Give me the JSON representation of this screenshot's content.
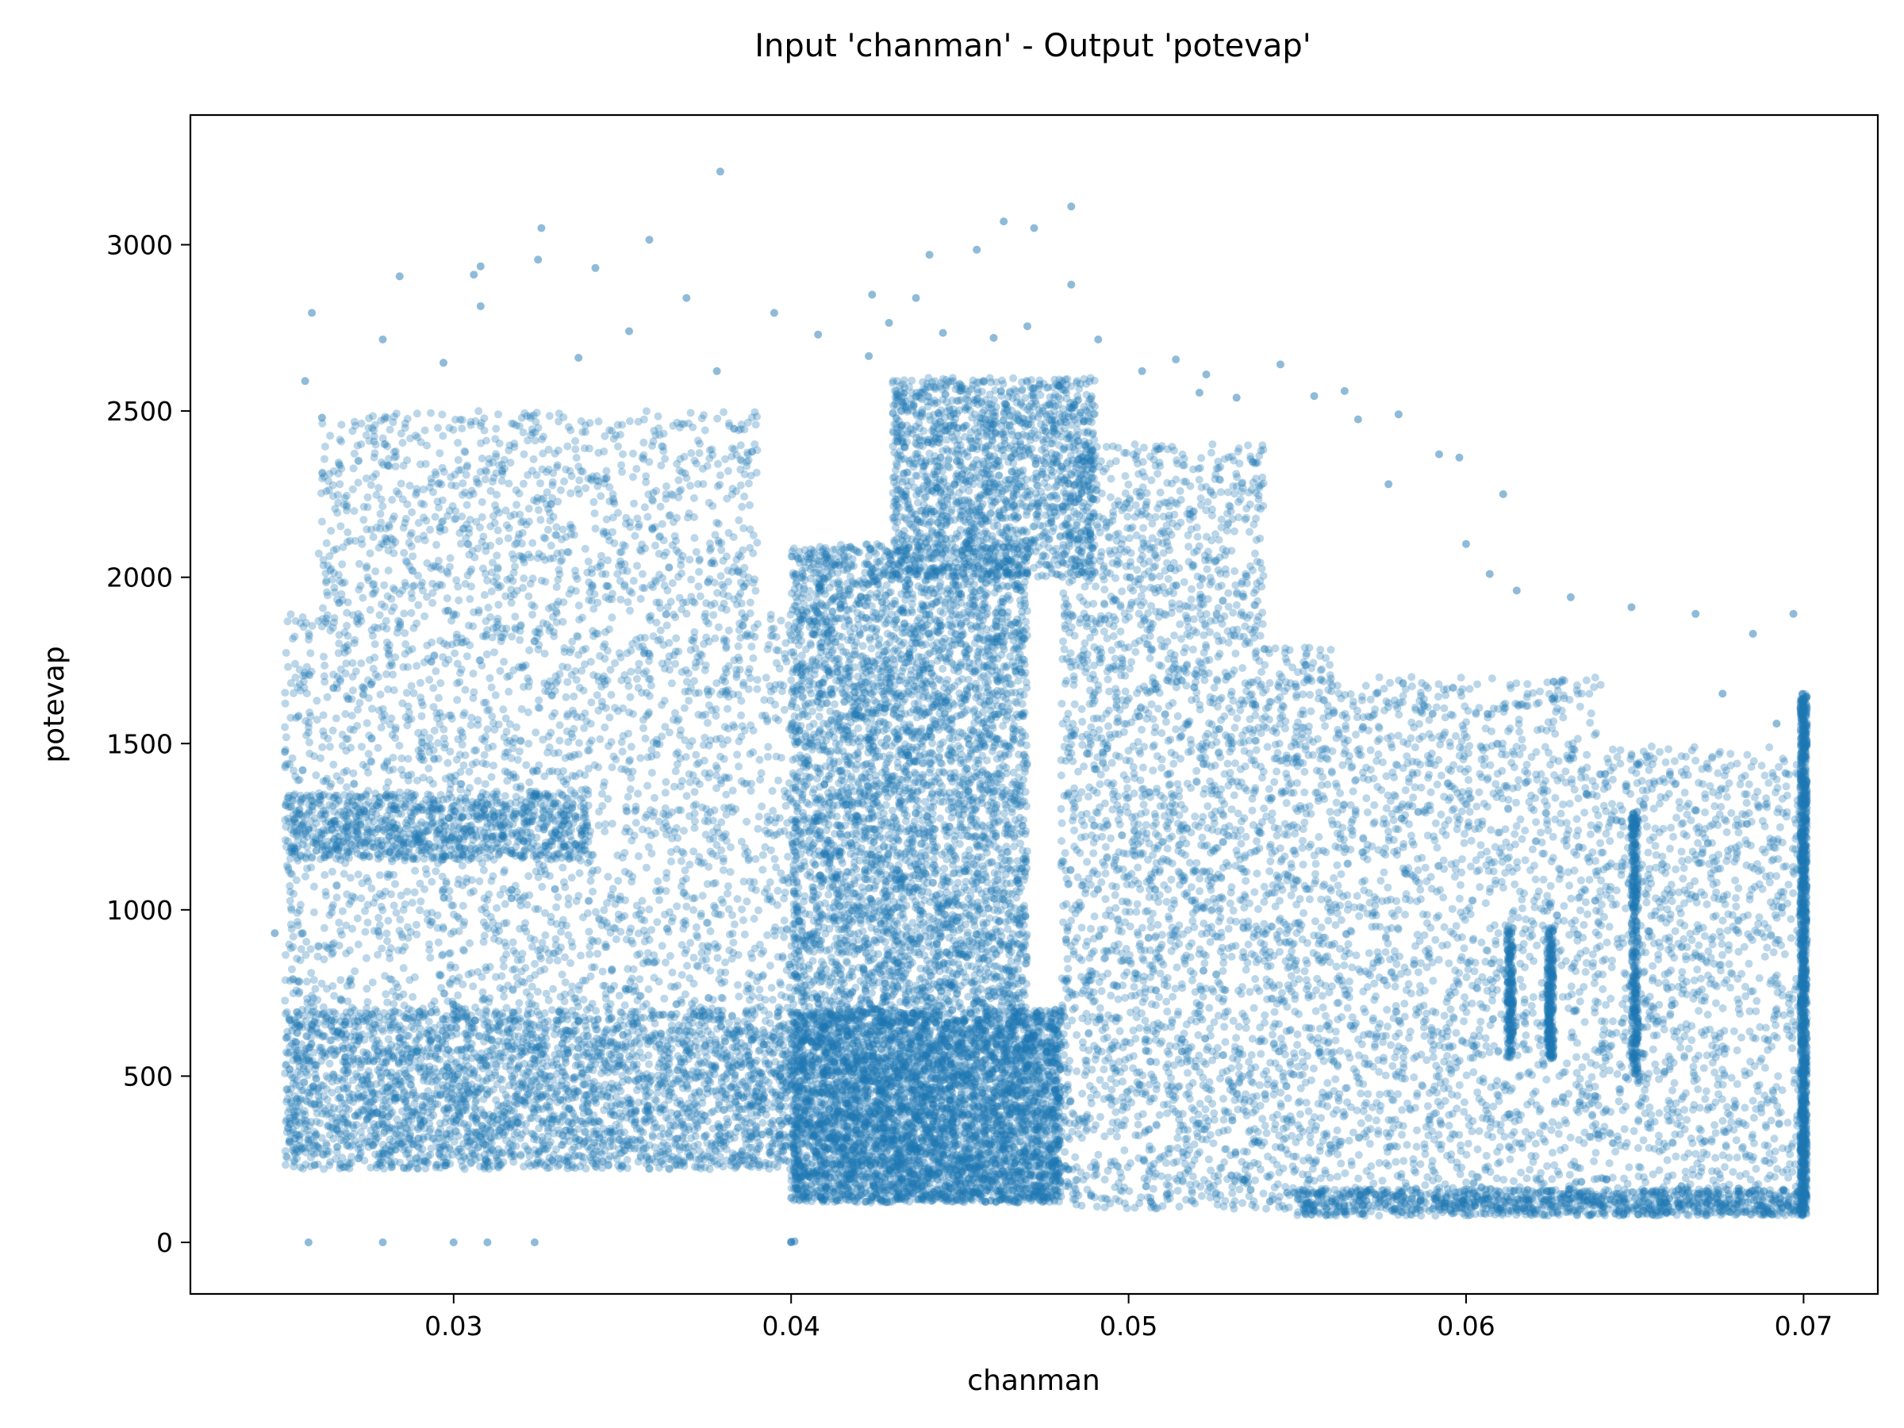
{
  "chart_data": {
    "type": "scatter",
    "title": "Input 'chanman' - Output 'potevap'",
    "xlabel": "chanman",
    "ylabel": "potevap",
    "xlim": [
      0.0222,
      0.0722
    ],
    "ylim": [
      -155,
      3390
    ],
    "xticks": [
      0.03,
      0.04,
      0.05,
      0.06,
      0.07
    ],
    "xtick_labels": [
      "0.03",
      "0.04",
      "0.05",
      "0.06",
      "0.07"
    ],
    "yticks": [
      0,
      500,
      1000,
      1500,
      2000,
      2500,
      3000
    ],
    "ytick_labels": [
      "0",
      "500",
      "1000",
      "1500",
      "2000",
      "2500",
      "3000"
    ],
    "grid": false,
    "legend": "none",
    "marker_color": "#1f77b4",
    "marker_alpha": 0.3,
    "series": [
      {
        "points": [
          [
            0.0379,
            3220
          ],
          [
            0.0483,
            3115
          ],
          [
            0.0326,
            3050
          ],
          [
            0.0463,
            3070
          ],
          [
            0.0472,
            3050
          ],
          [
            0.0358,
            3015
          ],
          [
            0.0308,
            2935
          ],
          [
            0.0325,
            2955
          ],
          [
            0.0441,
            2970
          ],
          [
            0.0455,
            2985
          ],
          [
            0.0306,
            2910
          ],
          [
            0.0284,
            2905
          ],
          [
            0.0342,
            2930
          ],
          [
            0.0483,
            2880
          ],
          [
            0.0258,
            2795
          ],
          [
            0.0308,
            2815
          ],
          [
            0.0369,
            2840
          ],
          [
            0.0424,
            2850
          ],
          [
            0.0437,
            2840
          ],
          [
            0.0395,
            2795
          ],
          [
            0.0279,
            2715
          ],
          [
            0.0352,
            2740
          ],
          [
            0.0429,
            2765
          ],
          [
            0.0408,
            2730
          ],
          [
            0.0445,
            2735
          ],
          [
            0.046,
            2720
          ],
          [
            0.047,
            2755
          ],
          [
            0.0491,
            2715
          ],
          [
            0.0256,
            2590
          ],
          [
            0.0261,
            2480
          ],
          [
            0.0297,
            2645
          ],
          [
            0.0337,
            2660
          ],
          [
            0.0378,
            2620
          ],
          [
            0.0423,
            2665
          ],
          [
            0.0504,
            2620
          ],
          [
            0.0514,
            2655
          ],
          [
            0.0545,
            2640
          ],
          [
            0.0521,
            2555
          ],
          [
            0.0532,
            2540
          ],
          [
            0.0564,
            2560
          ],
          [
            0.0523,
            2610
          ],
          [
            0.0555,
            2545
          ],
          [
            0.058,
            2490
          ],
          [
            0.0568,
            2475
          ],
          [
            0.0592,
            2370
          ],
          [
            0.0598,
            2360
          ],
          [
            0.0577,
            2280
          ],
          [
            0.0611,
            2250
          ],
          [
            0.025,
            1475
          ],
          [
            0.0247,
            930
          ],
          [
            0.0257,
            0
          ],
          [
            0.0279,
            0
          ],
          [
            0.03,
            0
          ],
          [
            0.031,
            0
          ],
          [
            0.0324,
            0
          ],
          [
            0.04,
            2
          ],
          [
            0.04,
            0
          ],
          [
            0.0401,
            3
          ],
          [
            0.06,
            2100
          ],
          [
            0.0607,
            2010
          ],
          [
            0.0615,
            1960
          ],
          [
            0.0631,
            1940
          ],
          [
            0.0649,
            1910
          ],
          [
            0.0668,
            1890
          ],
          [
            0.0685,
            1830
          ],
          [
            0.0697,
            1890
          ],
          [
            0.0676,
            1650
          ],
          [
            0.0692,
            1560
          ]
        ]
      }
    ],
    "density_regions": [
      {
        "x": [
          0.025,
          0.04
        ],
        "y": [
          220,
          700
        ],
        "weight": 3.0
      },
      {
        "x": [
          0.025,
          0.04
        ],
        "y": [
          700,
          1900
        ],
        "weight": 2.0
      },
      {
        "x": [
          0.026,
          0.039
        ],
        "y": [
          1900,
          2500
        ],
        "weight": 0.9
      },
      {
        "x": [
          0.025,
          0.034
        ],
        "y": [
          1150,
          1350
        ],
        "weight": 0.8
      },
      {
        "x": [
          0.04,
          0.048
        ],
        "y": [
          120,
          700
        ],
        "weight": 5.0
      },
      {
        "x": [
          0.04,
          0.047
        ],
        "y": [
          700,
          2100
        ],
        "weight": 4.0
      },
      {
        "x": [
          0.043,
          0.049
        ],
        "y": [
          2000,
          2600
        ],
        "weight": 1.5
      },
      {
        "x": [
          0.048,
          0.056
        ],
        "y": [
          100,
          1800
        ],
        "weight": 2.2
      },
      {
        "x": [
          0.048,
          0.054
        ],
        "y": [
          1800,
          2400
        ],
        "weight": 0.6
      },
      {
        "x": [
          0.056,
          0.064
        ],
        "y": [
          90,
          1700
        ],
        "weight": 1.6
      },
      {
        "x": [
          0.064,
          0.07
        ],
        "y": [
          90,
          1500
        ],
        "weight": 1.1
      },
      {
        "x": [
          0.055,
          0.07
        ],
        "y": [
          80,
          160
        ],
        "weight": 0.9
      },
      {
        "x": [
          0.0699,
          0.0701
        ],
        "y": [
          80,
          1650
        ],
        "weight": 1.2
      },
      {
        "x": [
          0.0649,
          0.0651
        ],
        "y": [
          500,
          1300
        ],
        "weight": 0.35
      },
      {
        "x": [
          0.0624,
          0.0626
        ],
        "y": [
          550,
          950
        ],
        "weight": 0.25
      },
      {
        "x": [
          0.0612,
          0.0614
        ],
        "y": [
          550,
          950
        ],
        "weight": 0.2
      }
    ]
  }
}
